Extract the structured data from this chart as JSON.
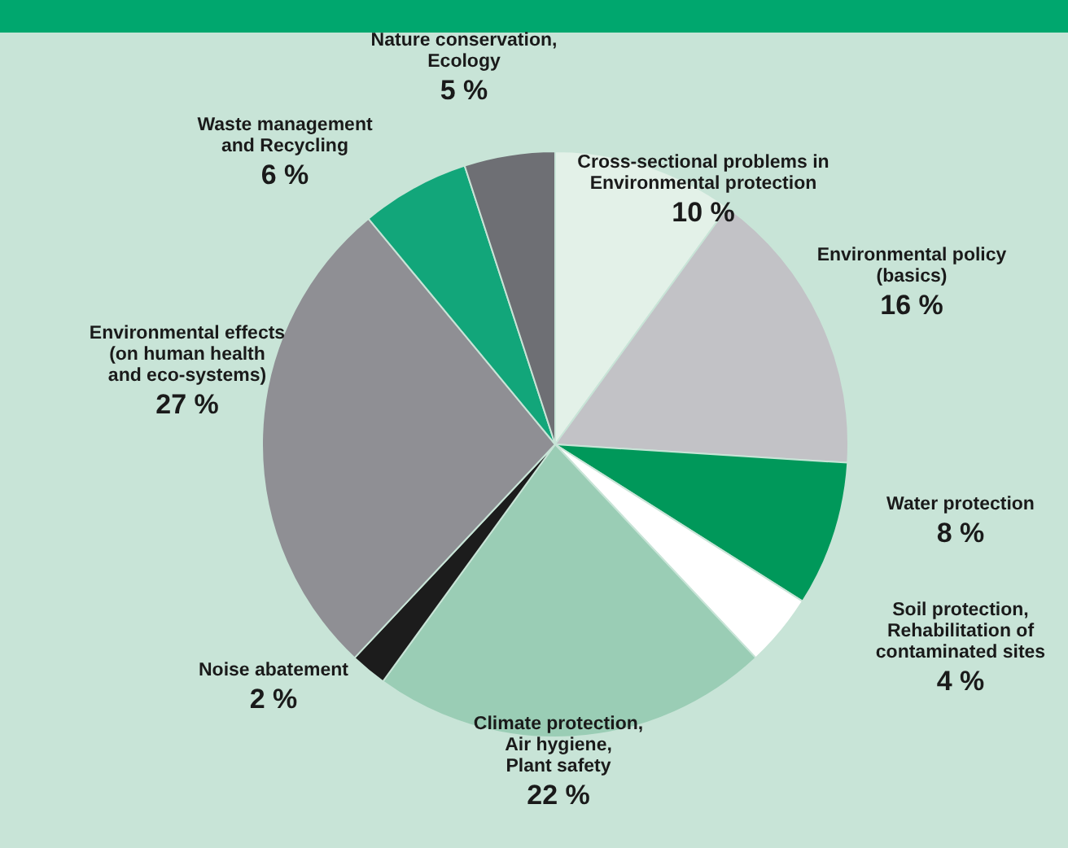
{
  "chart_data": {
    "type": "pie",
    "categories": [
      "Cross-sectional problems in\nEnvironmental protection",
      "Environmental policy\n(basics)",
      "Water protection",
      "Soil protection,\nRehabilitation of\ncontaminated sites",
      "Climate protection,\nAir hygiene,\nPlant safety",
      "Noise abatement",
      "Environmental effects\n(on human health\nand eco-systems)",
      "Waste management\nand Recycling",
      "Nature conservation,\nEcology"
    ],
    "values": [
      10,
      16,
      8,
      4,
      22,
      2,
      27,
      6,
      5
    ],
    "value_labels": [
      "10 %",
      "16 %",
      "8 %",
      "4 %",
      "22 %",
      "2 %",
      "27 %",
      "6 %",
      "5 %"
    ],
    "colors": [
      "#e3f1e8",
      "#c2c2c6",
      "#00985a",
      "#ffffff",
      "#9acdb5",
      "#1c1c1c",
      "#8f8f94",
      "#12a67a",
      "#6e6f74"
    ]
  }
}
